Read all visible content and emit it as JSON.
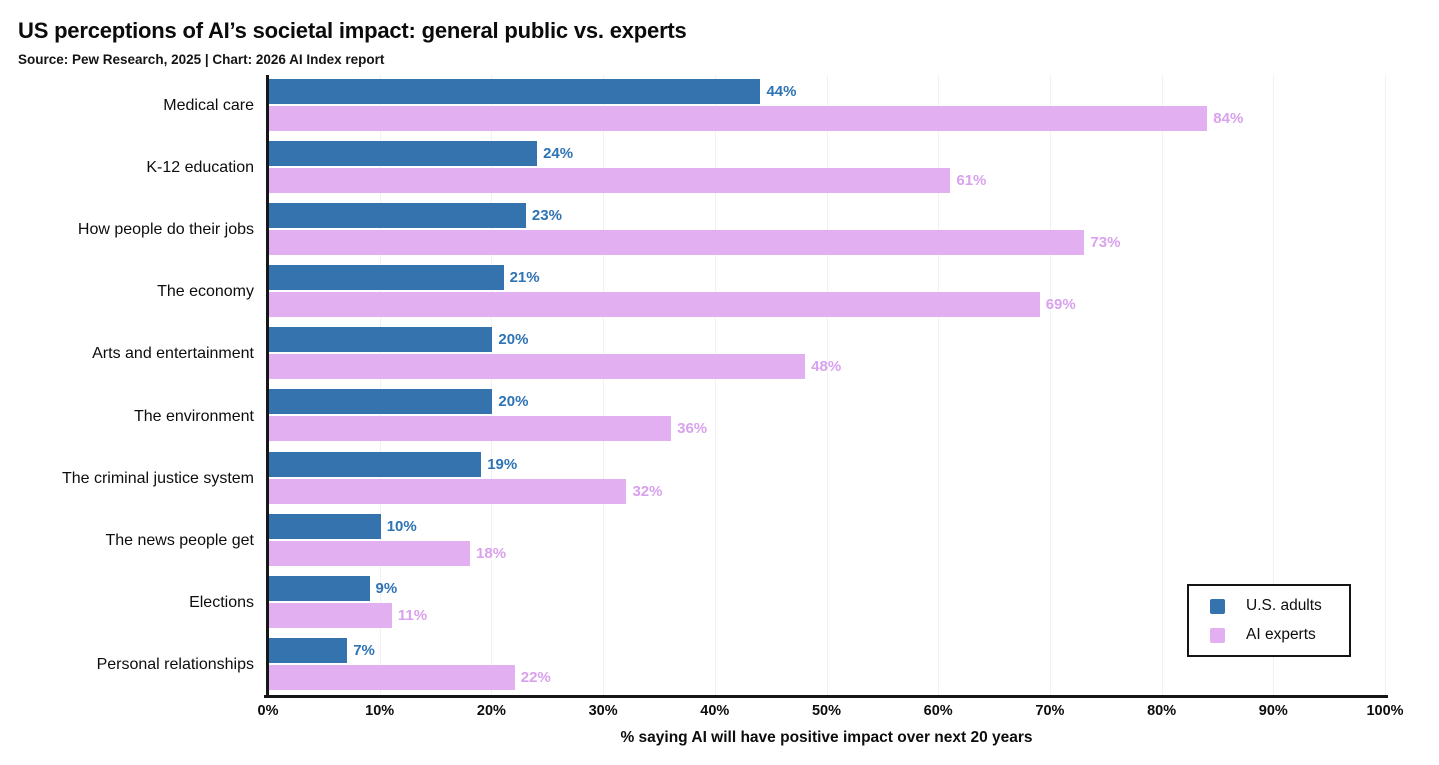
{
  "header": {
    "title": "US perceptions of AI’s societal impact: general public vs. experts",
    "subtitle": "Source: Pew Research, 2025 | Chart: 2026 AI Index report"
  },
  "chart_data": {
    "type": "bar",
    "orientation": "horizontal",
    "title": "US perceptions of AI’s societal impact: general public vs. experts",
    "subtitle": "Source: Pew Research, 2025 | Chart: 2026 AI Index report",
    "categories": [
      "Medical care",
      "K-12 education",
      "How people do their jobs",
      "The economy",
      "Arts and entertainment",
      "The environment",
      "The criminal justice system",
      "The news people get",
      "Elections",
      "Personal relationships"
    ],
    "series": [
      {
        "name": "U.S. adults",
        "color": "#3473ae",
        "label_color": "#2e73b4",
        "values": [
          44,
          24,
          23,
          21,
          20,
          20,
          19,
          10,
          9,
          7
        ]
      },
      {
        "name": "AI experts",
        "color": "#e2aff0",
        "label_color": "#d9a1ee",
        "values": [
          84,
          61,
          73,
          69,
          48,
          36,
          32,
          18,
          11,
          22
        ]
      }
    ],
    "value_suffix": "%",
    "xlabel": "% saying AI will have positive impact over next 20 years",
    "x_ticks": [
      "0%",
      "10%",
      "20%",
      "30%",
      "40%",
      "50%",
      "60%",
      "70%",
      "80%",
      "90%",
      "100%"
    ],
    "xlim": [
      0,
      100
    ],
    "grid": true,
    "grid_color": "#f3f0f1",
    "axis_color": "#161616",
    "legend_position": "bottom-right"
  }
}
